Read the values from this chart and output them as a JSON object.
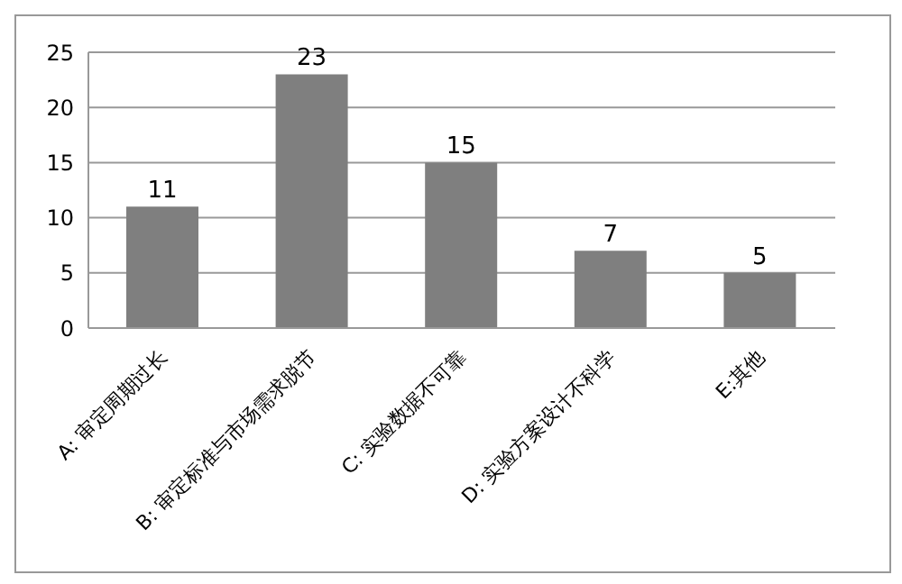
{
  "chart_data": {
    "type": "bar",
    "categories": [
      "A: 审定周期过长",
      "B:  审定标准与市场需求脱节",
      "C:  实验数据不可靠",
      "D:  实验方案设计不科学",
      "E:其他"
    ],
    "values": [
      11,
      23,
      15,
      7,
      5
    ],
    "color": "#7f7f7f",
    "ylim": [
      0,
      25
    ],
    "yticks": [
      0,
      5,
      10,
      15,
      20,
      25
    ],
    "grid": "y",
    "data_labels": true
  }
}
